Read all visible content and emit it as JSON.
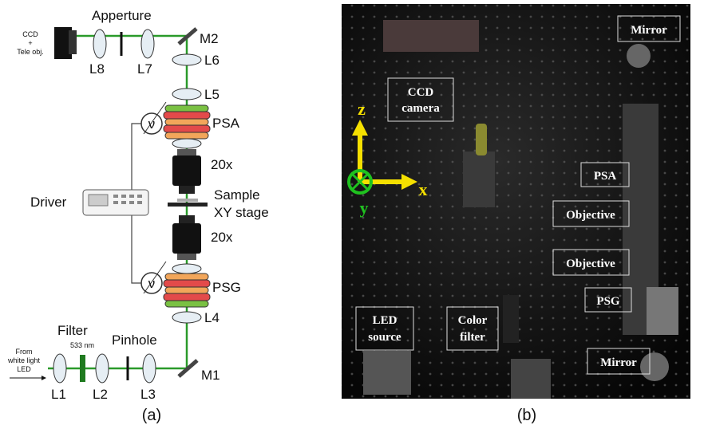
{
  "panel_a": {
    "caption": "(a)",
    "aperture": "Apperture",
    "ccd_label": [
      "CCD",
      "+",
      "Tele obj."
    ],
    "l8": "L8",
    "l7": "L7",
    "m2": "M2",
    "l6": "L6",
    "l5": "L5",
    "psa": "PSA",
    "obj_top": "20x",
    "driver": "Driver",
    "sample": [
      "Sample",
      "XY stage"
    ],
    "obj_bottom": "20x",
    "psg": "PSG",
    "l4": "L4",
    "filter": "Filter",
    "wavelength": "533 nm",
    "pinhole": "Pinhole",
    "source": [
      "From",
      "white light",
      "LED"
    ],
    "l1": "L1",
    "l2": "L2",
    "l3": "L3",
    "m1": "M1",
    "voltmeter_symbol": [
      "ν",
      "ν"
    ]
  },
  "panel_b": {
    "caption": "(b)",
    "mirror_top": "Mirror",
    "ccd_camera": [
      "CCD",
      "camera"
    ],
    "psa": "PSA",
    "objective_top": "Objective",
    "objective_bottom": "Objective",
    "psg": "PSG",
    "led_source": [
      "LED",
      "source"
    ],
    "color_filter": [
      "Color",
      "filter"
    ],
    "mirror_bottom": "Mirror",
    "axes": {
      "z": "z",
      "x": "x",
      "y": "y"
    }
  }
}
